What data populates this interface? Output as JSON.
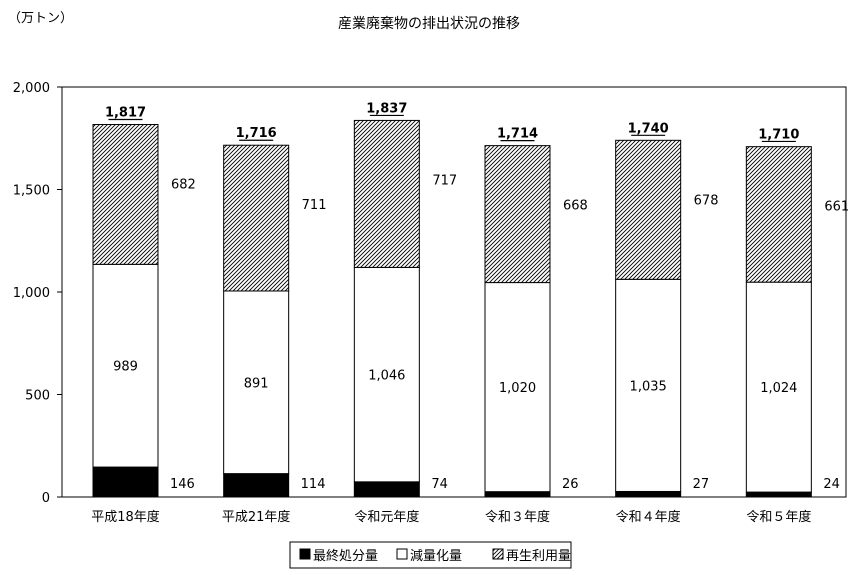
{
  "chart_data": {
    "type": "bar",
    "stacked": true,
    "title": "産業廃棄物の排出状況の推移",
    "unit_label": "（万トン）",
    "ylim": [
      0,
      2000
    ],
    "yticks": [
      0,
      500,
      1000,
      1500,
      2000
    ],
    "ytick_labels": [
      "0",
      "500",
      "1,000",
      "1,500",
      "2,000"
    ],
    "grid": false,
    "legend_position": "bottom",
    "categories": [
      "平成18年度",
      "平成21年度",
      "令和元年度",
      "令和３年度",
      "令和４年度",
      "令和５年度"
    ],
    "series": [
      {
        "name": "最終処分量",
        "values": [
          146,
          114,
          74,
          26,
          27,
          24
        ],
        "labels": [
          "146",
          "114",
          "74",
          "26",
          "27",
          "24"
        ],
        "fill": "#000000"
      },
      {
        "name": "減量化量",
        "values": [
          989,
          891,
          1046,
          1020,
          1035,
          1024
        ],
        "labels": [
          "989",
          "891",
          "1,046",
          "1,020",
          "1,035",
          "1,024"
        ],
        "fill": "#ffffff"
      },
      {
        "name": "再生利用量",
        "values": [
          682,
          711,
          717,
          668,
          678,
          661
        ],
        "labels": [
          "682",
          "711",
          "717",
          "668",
          "678",
          "661"
        ],
        "fill": "hatch"
      }
    ],
    "totals": [
      1817,
      1716,
      1837,
      1714,
      1740,
      1710
    ],
    "total_labels": [
      "1,817",
      "1,716",
      "1,837",
      "1,714",
      "1,740",
      "1,710"
    ],
    "legend": [
      {
        "marker": "■",
        "label": "最終処分量"
      },
      {
        "marker": "□",
        "label": "減量化量"
      },
      {
        "marker": "▨",
        "label": "再生利用量"
      }
    ]
  }
}
